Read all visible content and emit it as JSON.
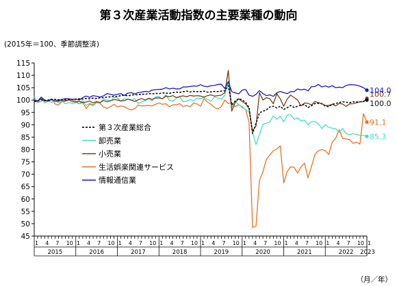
{
  "chart_data": {
    "type": "line",
    "title": "第３次産業活動指数の主要業種の動向",
    "subtitle": "(2015年＝100、季節調整済)",
    "xlabel": "（月／年）",
    "ylabel": "",
    "ylim": [
      45,
      115
    ],
    "yticks": [
      45,
      50,
      55,
      60,
      65,
      70,
      75,
      80,
      85,
      90,
      95,
      100,
      105,
      110,
      115
    ],
    "month_ticks": [
      "1",
      "4",
      "7",
      "10"
    ],
    "years": [
      "2015",
      "2016",
      "2017",
      "2018",
      "2019",
      "2020",
      "2021",
      "2022",
      "2023"
    ],
    "x_start": "2015-01",
    "x_end": "2023-01",
    "grid": false,
    "legend_position": "left-middle",
    "series": [
      {
        "name": "第３次産業総合",
        "color": "#111111",
        "dash": true,
        "end_label": "100.0",
        "values": [
          99.3,
          99.7,
          100.2,
          99.8,
          100.0,
          100.1,
          100.3,
          100.0,
          100.2,
          100.1,
          100.3,
          100.2,
          100.3,
          100.5,
          100.4,
          100.6,
          100.5,
          100.8,
          100.6,
          100.9,
          101.0,
          101.2,
          101.3,
          101.5,
          101.4,
          101.8,
          102.0,
          101.7,
          102.0,
          102.2,
          102.1,
          102.4,
          102.3,
          102.6,
          102.5,
          102.7,
          102.6,
          102.9,
          102.8,
          102.7,
          103.0,
          103.2,
          103.1,
          103.4,
          103.6,
          103.3,
          103.5,
          103.4,
          103.4,
          103.6,
          103.2,
          103.3,
          103.5,
          103.4,
          103.6,
          103.7,
          105.8,
          98.0,
          99.6,
          100.5,
          100.1,
          99.0,
          97.0,
          86.5,
          90.5,
          94.8,
          95.5,
          96.0,
          97.2,
          97.5,
          96.8,
          97.5,
          96.2,
          96.9,
          97.8,
          97.0,
          97.5,
          98.0,
          98.2,
          97.0,
          97.7,
          98.6,
          98.7,
          98.5,
          97.6,
          97.3,
          98.3,
          98.6,
          99.0,
          99.3,
          99.1,
          98.9,
          99.3,
          99.2,
          99.3,
          99.4,
          100.0
        ]
      },
      {
        "name": "卸売業",
        "color": "#3fe0c5",
        "dash": false,
        "end_label": "85.3",
        "values": [
          101.4,
          99.0,
          101.0,
          98.8,
          99.8,
          99.0,
          100.0,
          98.9,
          99.5,
          98.5,
          99.0,
          98.6,
          99.0,
          98.5,
          99.8,
          97.8,
          98.7,
          98.2,
          99.3,
          98.8,
          100.5,
          100.0,
          99.6,
          101.0,
          100.8,
          99.6,
          100.6,
          100.3,
          99.9,
          100.6,
          98.6,
          99.2,
          99.8,
          100.5,
          99.7,
          101.3,
          101.4,
          100.4,
          102.2,
          99.8,
          99.5,
          100.8,
          101.3,
          99.3,
          99.6,
          100.2,
          99.8,
          100.8,
          100.5,
          101.0,
          100.3,
          99.5,
          101.2,
          100.8,
          100.4,
          102.0,
          107.5,
          96.9,
          99.8,
          98.0,
          97.4,
          96.0,
          95.3,
          87.0,
          82.0,
          86.0,
          90.2,
          90.6,
          91.2,
          93.6,
          92.2,
          93.5,
          91.2,
          93.8,
          94.1,
          92.2,
          92.8,
          91.5,
          91.9,
          90.0,
          91.2,
          91.3,
          90.4,
          88.5,
          90.0,
          89.0,
          88.6,
          88.5,
          86.9,
          88.5,
          86.4,
          86.0,
          86.4,
          86.1,
          85.7,
          85.7,
          85.3
        ]
      },
      {
        "name": "小売業",
        "color": "#7a3a12",
        "dash": false,
        "end_label": "100.7",
        "values": [
          99.8,
          99.6,
          100.5,
          99.6,
          99.7,
          100.4,
          99.5,
          100.2,
          99.8,
          99.6,
          100.0,
          99.4,
          99.2,
          99.5,
          99.0,
          99.2,
          99.6,
          98.9,
          99.4,
          99.0,
          99.8,
          99.3,
          99.7,
          100.2,
          100.0,
          99.6,
          99.8,
          100.3,
          100.0,
          99.4,
          100.1,
          100.6,
          100.0,
          100.7,
          100.3,
          100.8,
          100.9,
          100.5,
          101.6,
          101.3,
          101.8,
          101.0,
          101.4,
          101.7,
          101.3,
          101.9,
          101.6,
          101.8,
          101.6,
          101.2,
          101.8,
          102.1,
          101.6,
          101.8,
          102.0,
          103.0,
          112.0,
          95.5,
          99.0,
          100.5,
          99.4,
          98.5,
          96.5,
          87.5,
          89.5,
          103.0,
          100.0,
          101.0,
          100.5,
          98.5,
          102.5,
          100.5,
          97.5,
          100.4,
          102.0,
          101.0,
          100.0,
          97.6,
          98.8,
          98.7,
          98.0,
          99.4,
          99.0,
          98.5,
          97.8,
          97.8,
          98.3,
          97.6,
          98.6,
          98.4,
          97.4,
          98.4,
          98.5,
          98.9,
          99.3,
          99.3,
          100.7
        ]
      },
      {
        "name": "生活娯楽関連サービス",
        "color": "#ec6f22",
        "dash": false,
        "end_label": "91.1",
        "values": [
          100.0,
          99.0,
          99.5,
          100.1,
          99.6,
          100.5,
          98.4,
          98.0,
          99.4,
          99.5,
          100.4,
          100.0,
          99.6,
          98.5,
          99.0,
          96.5,
          98.3,
          97.8,
          99.0,
          98.7,
          97.2,
          96.6,
          97.3,
          98.3,
          97.3,
          97.6,
          97.3,
          96.5,
          96.0,
          96.5,
          98.0,
          97.6,
          97.7,
          97.8,
          97.6,
          98.3,
          98.8,
          98.3,
          98.5,
          97.3,
          98.0,
          98.1,
          98.5,
          97.4,
          97.8,
          97.3,
          98.8,
          98.4,
          97.5,
          100.5,
          99.2,
          98.3,
          97.0,
          96.4,
          97.4,
          100.0,
          98.6,
          98.9,
          97.3,
          98.2,
          97.0,
          96.2,
          91.0,
          48.5,
          49.0,
          67.5,
          71.0,
          76.0,
          77.8,
          79.5,
          80.2,
          81.5,
          66.5,
          71.0,
          73.0,
          72.8,
          70.5,
          73.0,
          74.5,
          68.5,
          73.0,
          78.0,
          79.5,
          80.0,
          79.5,
          78.0,
          83.0,
          84.5,
          88.0,
          84.5,
          84.3,
          84.0,
          82.5,
          83.0,
          82.2,
          94.5,
          91.1
        ]
      },
      {
        "name": "情報通信業",
        "color": "#1717c4",
        "dash": false,
        "end_label": "104.0",
        "values": [
          100.0,
          99.5,
          101.2,
          100.0,
          99.5,
          100.3,
          99.6,
          99.5,
          100.2,
          100.6,
          100.5,
          100.3,
          100.4,
          100.0,
          101.0,
          101.6,
          101.1,
          101.8,
          101.5,
          101.2,
          101.7,
          102.6,
          102.3,
          102.0,
          102.3,
          102.6,
          101.8,
          102.8,
          103.0,
          102.5,
          103.0,
          103.2,
          103.5,
          103.3,
          104.0,
          104.2,
          104.3,
          104.4,
          105.0,
          104.5,
          104.8,
          104.5,
          104.5,
          105.3,
          105.3,
          105.5,
          105.7,
          105.6,
          106.2,
          105.6,
          105.4,
          105.8,
          105.9,
          106.3,
          106.4,
          104.7,
          107.5,
          103.4,
          102.9,
          102.5,
          104.0,
          104.3,
          102.0,
          101.5,
          102.3,
          103.8,
          102.6,
          101.8,
          102.1,
          101.5,
          102.9,
          103.5,
          103.0,
          102.6,
          103.4,
          103.4,
          104.5,
          104.1,
          104.4,
          103.7,
          105.4,
          105.5,
          106.3,
          105.3,
          105.7,
          105.2,
          105.8,
          105.0,
          105.2,
          105.0,
          105.9,
          106.2,
          106.2,
          106.0,
          105.6,
          105.0,
          104.0
        ]
      }
    ]
  }
}
